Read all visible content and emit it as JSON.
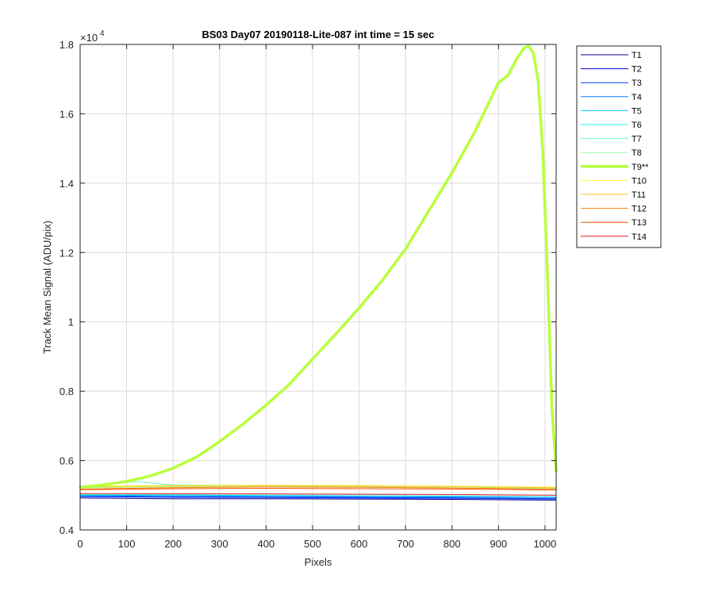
{
  "chart_data": {
    "type": "line",
    "title": "BS03 Day07 20190118-Lite-087 int time = 15 sec",
    "xlabel": "Pixels",
    "ylabel": "Track Mean Signal (ADU/pix)",
    "y_exponent_label": "×10",
    "y_exponent_power": "4",
    "xlim": [
      0,
      1024
    ],
    "ylim": [
      0.4,
      1.8
    ],
    "x_ticks": [
      0,
      100,
      200,
      300,
      400,
      500,
      600,
      700,
      800,
      900,
      1000
    ],
    "x_tick_labels": [
      "0",
      "100",
      "200",
      "300",
      "400",
      "500",
      "600",
      "700",
      "800",
      "900",
      "1000"
    ],
    "y_ticks": [
      0.4,
      0.6,
      0.8,
      1.0,
      1.2,
      1.4,
      1.6,
      1.8
    ],
    "y_tick_labels": [
      "0.4",
      "0.6",
      "0.8",
      "1",
      "1.2",
      "1.4",
      "1.6",
      "1.8"
    ],
    "grid": true,
    "legend_position": "outside-right",
    "series": [
      {
        "name": "T1",
        "color": "#00008f",
        "width": 1,
        "x": [
          0,
          200,
          400,
          600,
          800,
          1024
        ],
        "y": [
          0.492,
          0.49,
          0.49,
          0.489,
          0.488,
          0.486
        ]
      },
      {
        "name": "T2",
        "color": "#0000dd",
        "width": 1,
        "x": [
          0,
          200,
          400,
          600,
          800,
          1024
        ],
        "y": [
          0.497,
          0.495,
          0.494,
          0.493,
          0.492,
          0.49
        ]
      },
      {
        "name": "T3",
        "color": "#0033ff",
        "width": 1,
        "x": [
          0,
          200,
          400,
          600,
          800,
          1024
        ],
        "y": [
          0.496,
          0.494,
          0.493,
          0.492,
          0.491,
          0.489
        ]
      },
      {
        "name": "T4",
        "color": "#0080ff",
        "width": 1,
        "x": [
          0,
          200,
          400,
          600,
          800,
          1024
        ],
        "y": [
          0.499,
          0.498,
          0.497,
          0.496,
          0.495,
          0.493
        ]
      },
      {
        "name": "T5",
        "color": "#00ccff",
        "width": 1,
        "x": [
          0,
          200,
          400,
          600,
          800,
          1024
        ],
        "y": [
          0.5,
          0.5,
          0.499,
          0.498,
          0.497,
          0.495
        ]
      },
      {
        "name": "T6",
        "color": "#1affe6",
        "width": 1,
        "x": [
          0,
          200,
          400,
          600,
          800,
          1024
        ],
        "y": [
          0.502,
          0.503,
          0.503,
          0.502,
          0.501,
          0.5
        ]
      },
      {
        "name": "T7",
        "color": "#66ffcc",
        "width": 1,
        "x": [
          0,
          60,
          120,
          160,
          200,
          400,
          600,
          800,
          1024
        ],
        "y": [
          0.526,
          0.532,
          0.54,
          0.534,
          0.53,
          0.528,
          0.527,
          0.525,
          0.522
        ]
      },
      {
        "name": "T8",
        "color": "#99ff99",
        "width": 1,
        "x": [
          0,
          200,
          400,
          600,
          800,
          1024
        ],
        "y": [
          0.522,
          0.524,
          0.525,
          0.524,
          0.522,
          0.52
        ]
      },
      {
        "name": "T9**",
        "color": "#b8ff3c",
        "width": 3.5,
        "x": [
          0,
          50,
          100,
          150,
          200,
          250,
          300,
          350,
          400,
          450,
          500,
          550,
          600,
          650,
          700,
          750,
          800,
          850,
          900,
          920,
          940,
          955,
          965,
          975,
          985,
          995,
          1005,
          1015,
          1024
        ],
        "y": [
          0.523,
          0.53,
          0.54,
          0.555,
          0.578,
          0.61,
          0.655,
          0.705,
          0.76,
          0.82,
          0.893,
          0.965,
          1.04,
          1.12,
          1.21,
          1.32,
          1.43,
          1.55,
          1.69,
          1.71,
          1.76,
          1.79,
          1.795,
          1.775,
          1.7,
          1.5,
          1.15,
          0.75,
          0.57
        ]
      },
      {
        "name": "T10",
        "color": "#ffff33",
        "width": 1,
        "x": [
          0,
          200,
          400,
          600,
          800,
          1024
        ],
        "y": [
          0.526,
          0.528,
          0.529,
          0.528,
          0.526,
          0.523
        ]
      },
      {
        "name": "T11",
        "color": "#ffc21a",
        "width": 1,
        "x": [
          0,
          200,
          400,
          600,
          800,
          1024
        ],
        "y": [
          0.524,
          0.527,
          0.528,
          0.527,
          0.525,
          0.522
        ]
      },
      {
        "name": "T12",
        "color": "#ff8000",
        "width": 1,
        "x": [
          0,
          200,
          400,
          600,
          800,
          1024
        ],
        "y": [
          0.518,
          0.522,
          0.524,
          0.523,
          0.521,
          0.518
        ]
      },
      {
        "name": "T13",
        "color": "#ff4d00",
        "width": 1,
        "x": [
          0,
          200,
          400,
          600,
          800,
          1024
        ],
        "y": [
          0.516,
          0.519,
          0.52,
          0.519,
          0.518,
          0.515
        ]
      },
      {
        "name": "T14",
        "color": "#e61a1a",
        "width": 1,
        "x": [
          0,
          200,
          400,
          600,
          800,
          1024
        ],
        "y": [
          0.505,
          0.504,
          0.504,
          0.503,
          0.502,
          0.5
        ]
      }
    ]
  }
}
